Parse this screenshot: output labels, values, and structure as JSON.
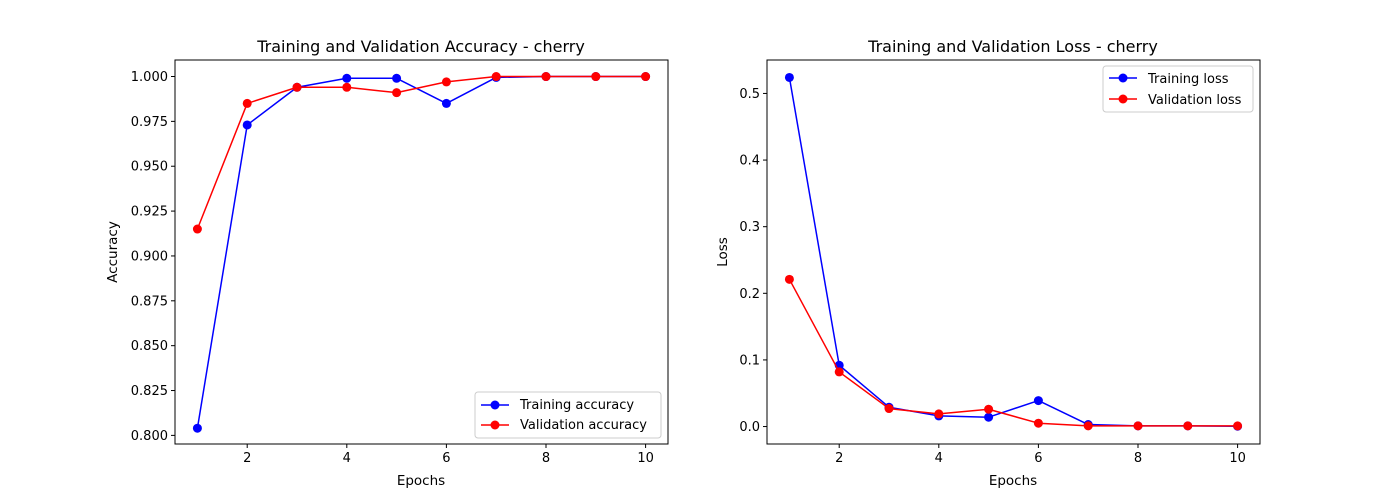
{
  "colors": {
    "training": "#0000ff",
    "validation": "#ff0000"
  },
  "chart_data": [
    {
      "type": "line",
      "title": "Training and Validation Accuracy - cherry",
      "xlabel": "Epochs",
      "ylabel": "Accuracy",
      "x": [
        1,
        2,
        3,
        4,
        5,
        6,
        7,
        8,
        9,
        10
      ],
      "xlim": [
        0.55,
        10.45
      ],
      "ylim": [
        0.7952,
        1.0092
      ],
      "xticks": [
        2,
        4,
        6,
        8,
        10
      ],
      "xtick_labels": [
        "2",
        "4",
        "6",
        "8",
        "10"
      ],
      "yticks": [
        0.8,
        0.825,
        0.85,
        0.875,
        0.9,
        0.925,
        0.95,
        0.975,
        1.0
      ],
      "ytick_labels": [
        "0.800",
        "0.825",
        "0.850",
        "0.875",
        "0.900",
        "0.925",
        "0.950",
        "0.975",
        "1.000"
      ],
      "grid": false,
      "legend_position": "lower-right",
      "series": [
        {
          "name": "Training accuracy",
          "color": "#0000ff",
          "marker": "circle",
          "values": [
            0.804,
            0.973,
            0.994,
            0.999,
            0.999,
            0.985,
            0.9995,
            1.0,
            1.0,
            1.0
          ]
        },
        {
          "name": "Validation accuracy",
          "color": "#ff0000",
          "marker": "circle",
          "values": [
            0.915,
            0.985,
            0.994,
            0.994,
            0.991,
            0.997,
            1.0,
            1.0,
            1.0,
            1.0
          ]
        }
      ]
    },
    {
      "type": "line",
      "title": "Training and Validation Loss - cherry",
      "xlabel": "Epochs",
      "ylabel": "Loss",
      "x": [
        1,
        2,
        3,
        4,
        5,
        6,
        7,
        8,
        9,
        10
      ],
      "xlim": [
        0.55,
        10.45
      ],
      "ylim": [
        -0.0262,
        0.5502
      ],
      "xticks": [
        2,
        4,
        6,
        8,
        10
      ],
      "xtick_labels": [
        "2",
        "4",
        "6",
        "8",
        "10"
      ],
      "yticks": [
        0.0,
        0.1,
        0.2,
        0.3,
        0.4,
        0.5
      ],
      "ytick_labels": [
        "0.0",
        "0.1",
        "0.2",
        "0.3",
        "0.4",
        "0.5"
      ],
      "grid": false,
      "legend_position": "upper-right",
      "series": [
        {
          "name": "Training loss",
          "color": "#0000ff",
          "marker": "circle",
          "values": [
            0.524,
            0.092,
            0.029,
            0.016,
            0.014,
            0.039,
            0.003,
            0.001,
            0.001,
            0.0005
          ]
        },
        {
          "name": "Validation loss",
          "color": "#ff0000",
          "marker": "circle",
          "values": [
            0.221,
            0.082,
            0.027,
            0.019,
            0.026,
            0.005,
            0.001,
            0.001,
            0.001,
            0.001
          ]
        }
      ]
    }
  ]
}
